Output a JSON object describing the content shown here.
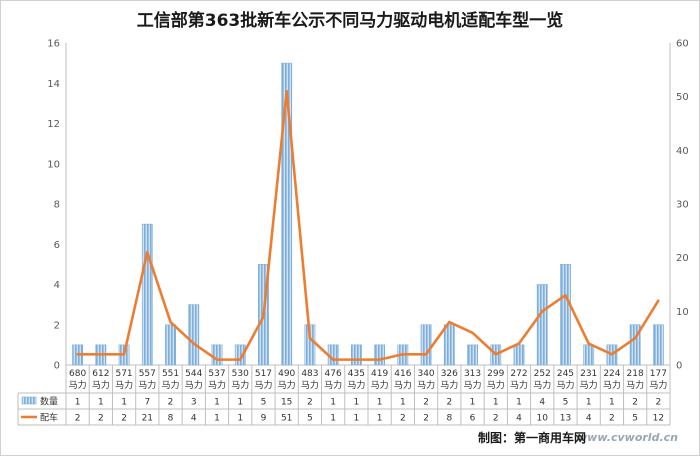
{
  "chart_data": {
    "type": "bar",
    "title": "工信部第363批新车公示不同马力驱动电机适配车型一览",
    "categories": [
      "680",
      "612",
      "571",
      "557",
      "551",
      "544",
      "537",
      "530",
      "517",
      "490",
      "483",
      "476",
      "435",
      "419",
      "416",
      "340",
      "326",
      "313",
      "299",
      "272",
      "252",
      "245",
      "231",
      "224",
      "218",
      "177"
    ],
    "category_unit": "马力",
    "series": [
      {
        "name": "数量",
        "type": "bar",
        "axis": "left",
        "color": "#7eaedb",
        "values": [
          1,
          1,
          1,
          7,
          2,
          3,
          1,
          1,
          5,
          15,
          2,
          1,
          1,
          1,
          1,
          2,
          2,
          1,
          1,
          1,
          4,
          5,
          1,
          1,
          2,
          2
        ]
      },
      {
        "name": "配车",
        "type": "line",
        "axis": "right",
        "color": "#ed7d31",
        "values": [
          2,
          2,
          2,
          21,
          8,
          4,
          1,
          1,
          9,
          51,
          5,
          1,
          1,
          1,
          2,
          2,
          8,
          6,
          2,
          4,
          10,
          13,
          4,
          2,
          5,
          12
        ]
      }
    ],
    "ylim_left": [
      0,
      16
    ],
    "yticks_left": [
      "0",
      "2",
      "4",
      "6",
      "8",
      "10",
      "12",
      "14",
      "16"
    ],
    "ylim_right": [
      0,
      60
    ],
    "yticks_right": [
      "0",
      "10",
      "20",
      "30",
      "40",
      "50",
      "60"
    ],
    "grid": false,
    "legend": "data-table"
  },
  "footer": {
    "credit": "制图：第一商用车网",
    "watermark": "www.cvworld.cn"
  }
}
